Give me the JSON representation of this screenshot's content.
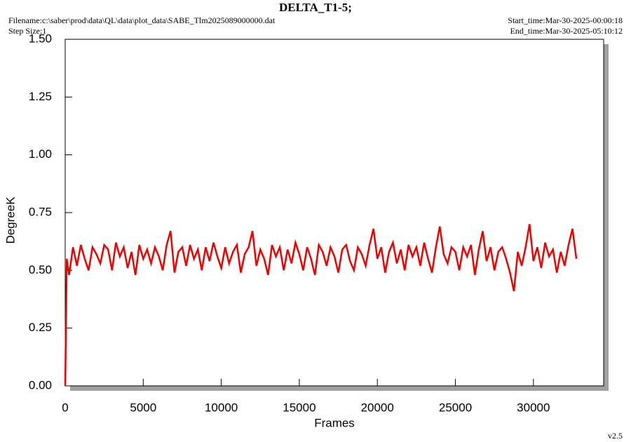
{
  "chart_data": {
    "type": "line",
    "title": "DELTA_T1-5;",
    "filename": "Filename:c:\\saber\\prod\\data\\QL\\data\\plot_data\\SABE_Tlm2025089000000.dat",
    "step_size": "Step Size:1",
    "start_time": "Start_time:Mar-30-2025-00:00:18",
    "end_time": "End_time:Mar-30-2025-05:10:12",
    "version": "v2.5",
    "x_label": "Frames",
    "y_label": "DegreeK",
    "xlim": [
      0,
      34500
    ],
    "ylim": [
      0,
      1.5
    ],
    "xticks": [
      0,
      5000,
      10000,
      15000,
      20000,
      25000,
      30000
    ],
    "yticks": [
      {
        "value": 0,
        "label": "0.00"
      },
      {
        "value": 0.25,
        "label": "0.25"
      },
      {
        "value": 0.5,
        "label": "0.50"
      },
      {
        "value": 0.75,
        "label": "0.75"
      },
      {
        "value": 1,
        "label": "1.00"
      },
      {
        "value": 1.25,
        "label": "1.25"
      },
      {
        "value": 1.5,
        "label": "1.50"
      }
    ],
    "x": [
      0,
      100,
      250,
      500,
      750,
      1000,
      1250,
      1500,
      1750,
      2000,
      2250,
      2500,
      2750,
      3000,
      3250,
      3500,
      3750,
      4000,
      4250,
      4500,
      4750,
      5000,
      5250,
      5500,
      5750,
      6000,
      6250,
      6500,
      6750,
      7000,
      7250,
      7500,
      7750,
      8000,
      8250,
      8500,
      8750,
      9000,
      9250,
      9500,
      9750,
      10000,
      10250,
      10500,
      10750,
      11000,
      11250,
      11500,
      11750,
      12000,
      12250,
      12500,
      12750,
      13000,
      13250,
      13500,
      13750,
      14000,
      14250,
      14500,
      14750,
      15000,
      15250,
      15500,
      15750,
      16000,
      16250,
      16500,
      16750,
      17000,
      17250,
      17500,
      17750,
      18000,
      18250,
      18500,
      18750,
      19000,
      19250,
      19500,
      19750,
      20000,
      20250,
      20500,
      20750,
      21000,
      21250,
      21500,
      21750,
      22000,
      22250,
      22500,
      22750,
      23000,
      23250,
      23500,
      23750,
      24000,
      24250,
      24500,
      24750,
      25000,
      25250,
      25500,
      25750,
      26000,
      26250,
      26500,
      26750,
      27000,
      27250,
      27500,
      27750,
      28000,
      28250,
      28500,
      28750,
      29000,
      29250,
      29500,
      29750,
      30000,
      30250,
      30500,
      30750,
      31000,
      31250,
      31500,
      31750,
      32000,
      32250,
      32500,
      32750
    ],
    "series": [
      {
        "name": "DELTA_T1-5",
        "color": "#ee0000",
        "values": [
          0,
          0.55,
          0.48,
          0.6,
          0.52,
          0.61,
          0.55,
          0.5,
          0.6,
          0.57,
          0.53,
          0.61,
          0.59,
          0.5,
          0.62,
          0.56,
          0.6,
          0.51,
          0.58,
          0.48,
          0.61,
          0.55,
          0.59,
          0.53,
          0.6,
          0.56,
          0.5,
          0.61,
          0.67,
          0.49,
          0.58,
          0.6,
          0.52,
          0.61,
          0.55,
          0.59,
          0.5,
          0.6,
          0.54,
          0.62,
          0.56,
          0.51,
          0.6,
          0.53,
          0.58,
          0.61,
          0.49,
          0.57,
          0.6,
          0.67,
          0.52,
          0.59,
          0.55,
          0.48,
          0.61,
          0.56,
          0.6,
          0.5,
          0.59,
          0.53,
          0.62,
          0.57,
          0.5,
          0.6,
          0.55,
          0.48,
          0.61,
          0.58,
          0.52,
          0.6,
          0.56,
          0.49,
          0.59,
          0.61,
          0.54,
          0.5,
          0.6,
          0.57,
          0.52,
          0.61,
          0.68,
          0.55,
          0.6,
          0.49,
          0.58,
          0.62,
          0.53,
          0.59,
          0.5,
          0.61,
          0.56,
          0.6,
          0.52,
          0.62,
          0.55,
          0.49,
          0.6,
          0.69,
          0.57,
          0.53,
          0.6,
          0.58,
          0.5,
          0.6,
          0.56,
          0.61,
          0.48,
          0.59,
          0.67,
          0.54,
          0.6,
          0.5,
          0.58,
          0.6,
          0.55,
          0.49,
          0.41,
          0.58,
          0.52,
          0.6,
          0.7,
          0.54,
          0.6,
          0.51,
          0.62,
          0.56,
          0.59,
          0.49,
          0.58,
          0.52,
          0.61,
          0.68,
          0.55
        ]
      }
    ]
  }
}
